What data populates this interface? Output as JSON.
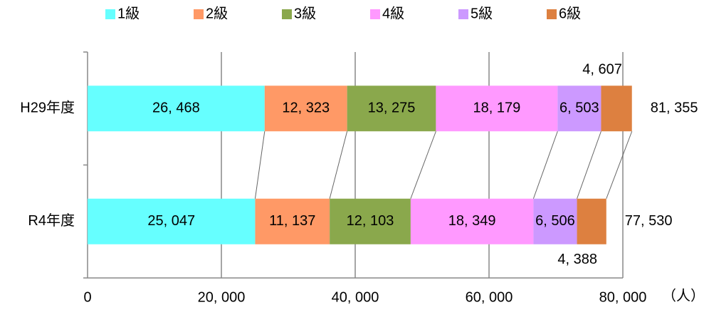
{
  "chart_data": {
    "type": "stacked-bar-horizontal",
    "categories": [
      "H29年度",
      "R4年度"
    ],
    "series": [
      {
        "name": "1級",
        "color": "#66ffff",
        "values": [
          26468,
          25047
        ],
        "value_labels": [
          "26, 468",
          "25, 047"
        ]
      },
      {
        "name": "2級",
        "color": "#ff9966",
        "values": [
          12323,
          11137
        ],
        "value_labels": [
          "12, 323",
          "11, 137"
        ]
      },
      {
        "name": "3級",
        "color": "#8aa84c",
        "values": [
          13275,
          12103
        ],
        "value_labels": [
          "13, 275",
          "12, 103"
        ]
      },
      {
        "name": "4級",
        "color": "#ff99ff",
        "values": [
          18179,
          18349
        ],
        "value_labels": [
          "18, 179",
          "18, 349"
        ]
      },
      {
        "name": "5級",
        "color": "#cc99ff",
        "values": [
          6503,
          6506
        ],
        "value_labels": [
          "6, 503",
          "6, 506"
        ]
      },
      {
        "name": "6級",
        "color": "#dd8040",
        "values": [
          4607,
          4388
        ],
        "value_labels": [
          "4, 607",
          "4, 388"
        ]
      }
    ],
    "totals": [
      81355,
      77530
    ],
    "total_labels": [
      "81, 355",
      "77, 530"
    ],
    "x_label": "（人）",
    "xlim": [
      0,
      80000
    ],
    "xticks": [
      0,
      {
        "value": 20000,
        "label": "20, 000"
      },
      {
        "value": 40000,
        "label": "40, 000"
      },
      {
        "value": 60000,
        "label": "60, 000"
      },
      {
        "value": 80000,
        "label": "80, 000"
      }
    ],
    "grid": true,
    "legend": "top"
  }
}
